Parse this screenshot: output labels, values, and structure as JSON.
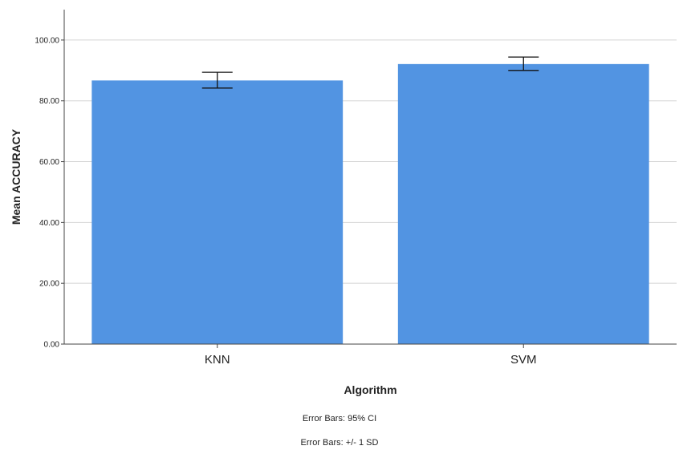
{
  "chart_data": {
    "type": "bar",
    "categories": [
      "KNN",
      "SVM"
    ],
    "values": [
      86.7,
      92.1
    ],
    "error_bars": [
      {
        "lower": 84.2,
        "upper": 89.4
      },
      {
        "lower": 90.0,
        "upper": 94.4
      }
    ],
    "xlabel": "Algorithm",
    "ylabel": "Mean ACCURACY",
    "ylim": [
      0,
      110
    ],
    "yticks": [
      0,
      20,
      40,
      60,
      80,
      100
    ],
    "ytick_labels": [
      "0.00",
      "20.00",
      "40.00",
      "60.00",
      "80.00",
      "100.00"
    ],
    "grid": true,
    "bar_color": "#5294e2",
    "notes": [
      "Error Bars: 95% CI",
      "Error Bars: +/- 1 SD"
    ]
  }
}
